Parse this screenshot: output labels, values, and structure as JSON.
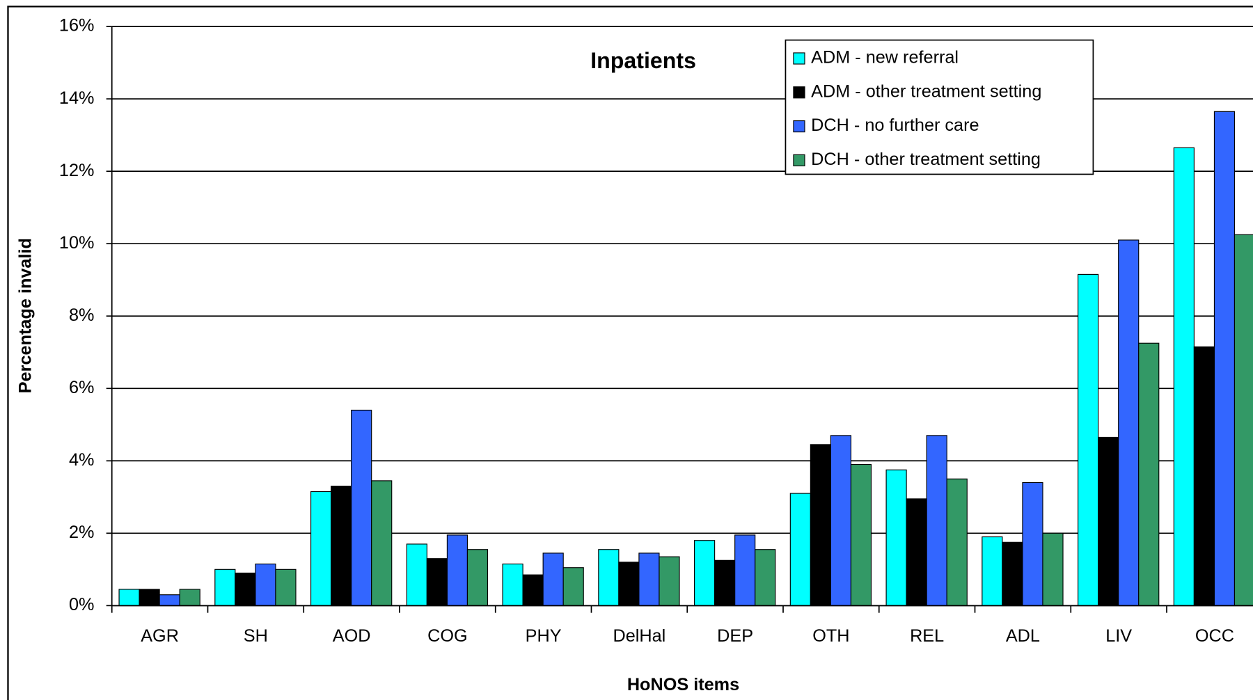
{
  "chart_data": {
    "type": "bar",
    "title": "Inpatients",
    "x_label": "HoNOS items",
    "y_label": "Percentage invalid",
    "categories": [
      "AGR",
      "SH",
      "AOD",
      "COG",
      "PHY",
      "DelHal",
      "DEP",
      "OTH",
      "REL",
      "ADL",
      "LIV",
      "OCC"
    ],
    "series": [
      {
        "name": "ADM - new referral",
        "color": "#00ffff",
        "values": [
          0.45,
          1.0,
          3.15,
          1.7,
          1.15,
          1.55,
          1.8,
          3.1,
          3.75,
          1.9,
          9.15,
          12.65
        ]
      },
      {
        "name": "ADM - other treatment setting",
        "color": "#000000",
        "values": [
          0.45,
          0.9,
          3.3,
          1.3,
          0.85,
          1.2,
          1.25,
          4.45,
          2.95,
          1.75,
          4.65,
          7.15
        ]
      },
      {
        "name": "DCH - no further care",
        "color": "#3366ff",
        "values": [
          0.3,
          1.15,
          5.4,
          1.95,
          1.45,
          1.45,
          1.95,
          4.7,
          4.7,
          3.4,
          10.1,
          13.65
        ]
      },
      {
        "name": "DCH - other treatment setting",
        "color": "#339966",
        "values": [
          0.45,
          1.0,
          3.45,
          1.55,
          1.05,
          1.35,
          1.55,
          3.9,
          3.5,
          2.0,
          7.25,
          10.25
        ]
      }
    ],
    "ylim": [
      0,
      16
    ],
    "yticks": [
      {
        "value": 0,
        "label": "0%"
      },
      {
        "value": 2,
        "label": "2%"
      },
      {
        "value": 4,
        "label": "4%"
      },
      {
        "value": 6,
        "label": "6%"
      },
      {
        "value": 8,
        "label": "8%"
      },
      {
        "value": 10,
        "label": "10%"
      },
      {
        "value": 12,
        "label": "12%"
      },
      {
        "value": 14,
        "label": "14%"
      },
      {
        "value": 16,
        "label": "16%"
      }
    ],
    "grid": true,
    "legend": "top-right"
  }
}
